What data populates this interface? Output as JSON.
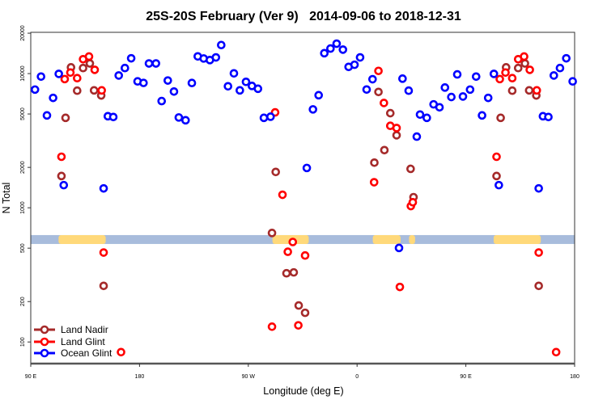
{
  "chart_data": {
    "type": "scatter",
    "title": "25S-20S February (Ver 9)   2014-09-06 to 2018-12-31",
    "xlabel": "Longitude (deg E)",
    "ylabel": "N Total",
    "x_axis": {
      "start_lon": 90,
      "span_deg": 450,
      "tick_labels": [
        "90 E",
        "180",
        "90 W",
        "0",
        "90 E",
        "180"
      ]
    },
    "y_axis": {
      "scale": "log",
      "ylim": [
        69,
        20300
      ],
      "ticks": [
        100,
        200,
        500,
        1000,
        2000,
        5000,
        10000,
        20000
      ]
    },
    "grid": false,
    "legend_placement": "bottom-left",
    "land_mask": {
      "value_level": 580,
      "land_color": "#FFD97A",
      "ocean_color": "#A8BCDC",
      "land_lon_ranges": [
        [
          113,
          152
        ],
        [
          -70,
          -40
        ],
        [
          13,
          36
        ],
        [
          43,
          48
        ]
      ]
    },
    "series": [
      {
        "name": "Land Nadir",
        "color": "#A52A2A",
        "points": [
          [
            115.4,
            1725
          ],
          [
            118.8,
            4680
          ],
          [
            123.3,
            11130
          ],
          [
            128.4,
            7460
          ],
          [
            133.3,
            11000
          ],
          [
            138.9,
            11900
          ],
          [
            142.4,
            7500
          ],
          [
            148.3,
            6870
          ],
          [
            150.3,
            262
          ],
          [
            -70.4,
            649
          ],
          [
            -67.3,
            1850
          ],
          [
            -58.4,
            325
          ],
          [
            -52.4,
            330
          ],
          [
            -48.3,
            187
          ],
          [
            -43,
            165
          ],
          [
            14.3,
            2170
          ],
          [
            17.7,
            7300
          ],
          [
            22.6,
            2690
          ],
          [
            27.5,
            5070
          ],
          [
            32.7,
            3470
          ],
          [
            44.3,
            1950
          ],
          [
            46.7,
            1200
          ]
        ]
      },
      {
        "name": "Land Glint",
        "color": "#FF0000",
        "points": [
          [
            115.4,
            2400
          ],
          [
            118.1,
            9100
          ],
          [
            122.8,
            10180
          ],
          [
            128.4,
            9250
          ],
          [
            133.3,
            12800
          ],
          [
            138.2,
            13400
          ],
          [
            142.9,
            10670
          ],
          [
            148.7,
            7500
          ],
          [
            150.3,
            464
          ],
          [
            164.7,
            84
          ],
          [
            -70.4,
            130
          ],
          [
            -67.8,
            5140
          ],
          [
            -61.7,
            1250
          ],
          [
            -57.3,
            470
          ],
          [
            -53.2,
            556
          ],
          [
            -48.6,
            133
          ],
          [
            -43,
            441
          ],
          [
            14.1,
            1550
          ],
          [
            17.7,
            10470
          ],
          [
            22.2,
            6040
          ],
          [
            27.5,
            4080
          ],
          [
            32.7,
            3930
          ],
          [
            35.4,
            257
          ],
          [
            44.5,
            1030
          ],
          [
            46.1,
            1100
          ]
        ]
      },
      {
        "name": "Ocean Glint",
        "color": "#0000FF",
        "points": [
          [
            93.5,
            7600
          ],
          [
            98.5,
            9500
          ],
          [
            103.4,
            4880
          ],
          [
            108.5,
            6590
          ],
          [
            113.2,
            9950
          ],
          [
            117.3,
            1475
          ],
          [
            150.3,
            1395
          ],
          [
            153.8,
            4810
          ],
          [
            158.3,
            4750
          ],
          [
            162.8,
            9680
          ],
          [
            167.9,
            11000
          ],
          [
            173.1,
            13000
          ],
          [
            178.4,
            8750
          ],
          [
            -176.7,
            8520
          ],
          [
            -172.2,
            11900
          ],
          [
            -166.4,
            11900
          ],
          [
            -161.7,
            6240
          ],
          [
            -156.6,
            8880
          ],
          [
            -151.5,
            7350
          ],
          [
            -147.5,
            4710
          ],
          [
            -141.9,
            4490
          ],
          [
            -136.7,
            8510
          ],
          [
            -131.8,
            13430
          ],
          [
            -126.9,
            12960
          ],
          [
            -121.8,
            12610
          ],
          [
            -116.8,
            13200
          ],
          [
            -112.4,
            16320
          ],
          [
            -106.8,
            8040
          ],
          [
            -101.9,
            10040
          ],
          [
            -97,
            7500
          ],
          [
            -91.9,
            8680
          ],
          [
            -87,
            8090
          ],
          [
            -82,
            7710
          ],
          [
            -77.1,
            4680
          ],
          [
            -71.6,
            4770
          ],
          [
            -41.6,
            1980
          ],
          [
            -36.5,
            5410
          ],
          [
            -31.8,
            6900
          ],
          [
            -27.1,
            14190
          ],
          [
            -22,
            15370
          ],
          [
            -16.9,
            16710
          ],
          [
            -11.7,
            15090
          ],
          [
            -7,
            11220
          ],
          [
            -2.1,
            11640
          ],
          [
            2.5,
            13200
          ],
          [
            7.9,
            7610
          ],
          [
            12.8,
            9080
          ],
          [
            34.7,
            502
          ],
          [
            37.6,
            9170
          ],
          [
            42.7,
            7460
          ],
          [
            49.4,
            3390
          ],
          [
            52.1,
            4950
          ],
          [
            57.7,
            4680
          ],
          [
            63.3,
            5900
          ],
          [
            68.2,
            5610
          ],
          [
            72.7,
            7870
          ],
          [
            78,
            6690
          ],
          [
            82.9,
            9860
          ],
          [
            87.6,
            6750
          ]
        ]
      }
    ]
  }
}
